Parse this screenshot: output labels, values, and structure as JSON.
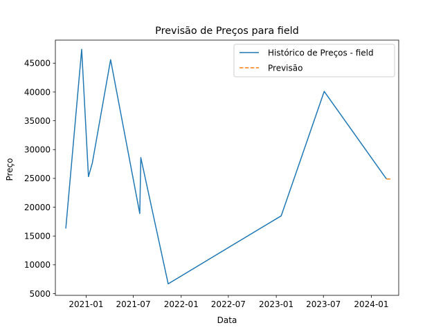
{
  "chart_data": {
    "type": "line",
    "title": "Previsão de Preços para field",
    "xlabel": "Data",
    "ylabel": "Preço",
    "x_axis": "date",
    "xlim": [
      "2020-09-05",
      "2024-04-15"
    ],
    "ylim": [
      4700,
      49000
    ],
    "x_ticks": [
      {
        "date": "2021-01-01",
        "label": "2021-01"
      },
      {
        "date": "2021-07-01",
        "label": "2021-07"
      },
      {
        "date": "2022-01-01",
        "label": "2022-01"
      },
      {
        "date": "2022-07-01",
        "label": "2022-07"
      },
      {
        "date": "2023-01-01",
        "label": "2023-01"
      },
      {
        "date": "2023-07-01",
        "label": "2023-07"
      },
      {
        "date": "2024-01-01",
        "label": "2024-01"
      }
    ],
    "y_ticks": [
      5000,
      10000,
      15000,
      20000,
      25000,
      30000,
      35000,
      40000,
      45000
    ],
    "grid": false,
    "legend_position": "top-right",
    "series": [
      {
        "name": "Histórico de Preços - field",
        "color": "#1f77b4",
        "style": "solid",
        "points": [
          {
            "x": "2020-10-15",
            "y": 16300
          },
          {
            "x": "2020-12-15",
            "y": 47400
          },
          {
            "x": "2021-01-10",
            "y": 25300
          },
          {
            "x": "2021-01-25",
            "y": 27700
          },
          {
            "x": "2021-04-05",
            "y": 45600
          },
          {
            "x": "2021-07-26",
            "y": 18900
          },
          {
            "x": "2021-07-30",
            "y": 28600
          },
          {
            "x": "2021-11-12",
            "y": 6700
          },
          {
            "x": "2023-01-20",
            "y": 18500
          },
          {
            "x": "2023-07-04",
            "y": 40100
          },
          {
            "x": "2024-02-28",
            "y": 24900
          }
        ]
      },
      {
        "name": "Previsão",
        "color": "#ff7f0e",
        "style": "dashed",
        "points": [
          {
            "x": "2024-02-28",
            "y": 24900
          },
          {
            "x": "2024-03-20",
            "y": 24900
          }
        ]
      }
    ]
  }
}
